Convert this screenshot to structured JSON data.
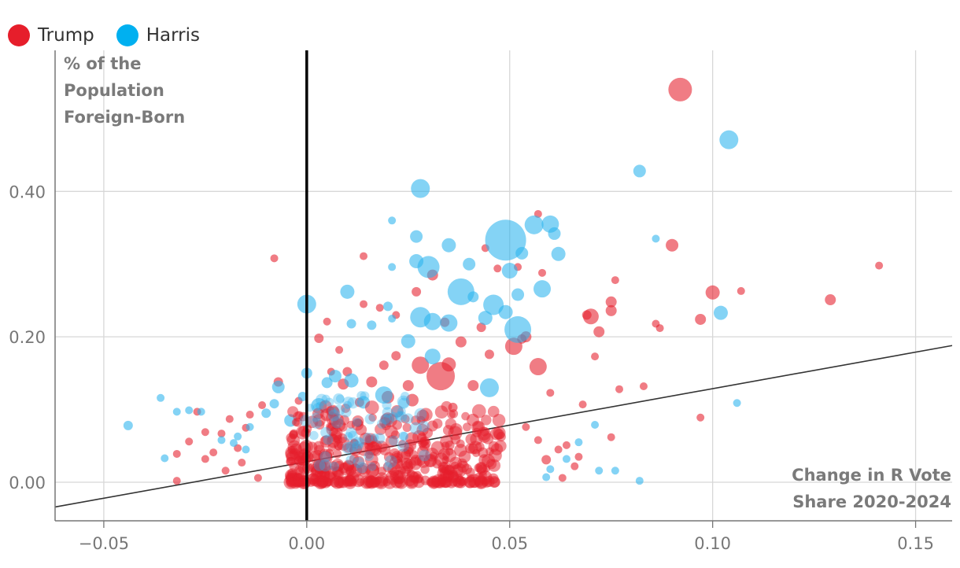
{
  "colors": {
    "trump": "#e61e2b",
    "harris": "#2bb3ee",
    "grid": "#d7d7d7",
    "axis": "#777777",
    "zero_line": "#000000",
    "trend_line": "#333333"
  },
  "legend": [
    {
      "label": "Trump",
      "color": "#e61e2b"
    },
    {
      "label": "Harris",
      "color": "#00b0f0"
    }
  ],
  "chart_data": {
    "type": "scatter",
    "title": "",
    "xlabel": "Change in R Vote Share 2020-2024",
    "ylabel": "% of the Population Foreign-Born",
    "xlabel_lines": [
      "Change in R Vote",
      "Share 2020-2024"
    ],
    "ylabel_lines": [
      "% of the",
      "Population",
      "Foreign-Born"
    ],
    "xlim": [
      -0.062,
      0.159
    ],
    "ylim": [
      -0.053,
      0.594
    ],
    "x_ticks": [
      -0.05,
      0.0,
      0.05,
      0.1,
      0.15
    ],
    "x_tick_labels": [
      "−0.05",
      "0.00",
      "0.05",
      "0.10",
      "0.15"
    ],
    "y_ticks": [
      0.0,
      0.2,
      0.4
    ],
    "y_tick_labels": [
      "0.00",
      "0.20",
      "0.40"
    ],
    "vertical_reference_x": 0.0,
    "trend_line": {
      "x": [
        -0.062,
        0.159
      ],
      "y": [
        -0.034,
        0.188
      ]
    },
    "size_note": "marker area scales with county population",
    "series": [
      {
        "name": "Trump",
        "points": [
          [
            0.092,
            0.54,
            15
          ],
          [
            0.141,
            0.298,
            5
          ],
          [
            0.129,
            0.251,
            7
          ],
          [
            0.107,
            0.263,
            5
          ],
          [
            0.1,
            0.261,
            9
          ],
          [
            0.097,
            0.224,
            7
          ],
          [
            0.09,
            0.326,
            8
          ],
          [
            0.087,
            0.212,
            5
          ],
          [
            0.086,
            0.218,
            5
          ],
          [
            0.083,
            0.132,
            5
          ],
          [
            0.077,
            0.128,
            5
          ],
          [
            0.076,
            0.278,
            5
          ],
          [
            0.075,
            0.248,
            7
          ],
          [
            0.075,
            0.236,
            7
          ],
          [
            0.072,
            0.207,
            7
          ],
          [
            0.071,
            0.173,
            5
          ],
          [
            0.07,
            0.228,
            10
          ],
          [
            0.069,
            0.23,
            6
          ],
          [
            0.097,
            0.089,
            5
          ],
          [
            0.075,
            0.062,
            5
          ],
          [
            0.068,
            0.107,
            5
          ],
          [
            0.057,
            0.159,
            11
          ],
          [
            0.051,
            0.187,
            11
          ],
          [
            0.053,
            0.197,
            6
          ],
          [
            0.054,
            0.2,
            7
          ],
          [
            0.06,
            0.123,
            5
          ],
          [
            0.057,
            0.369,
            5
          ],
          [
            0.058,
            0.288,
            5
          ],
          [
            0.047,
            0.294,
            5
          ],
          [
            0.052,
            0.296,
            5
          ],
          [
            0.044,
            0.322,
            5
          ],
          [
            0.031,
            0.285,
            7
          ],
          [
            0.027,
            0.262,
            6
          ],
          [
            0.022,
            0.23,
            5
          ],
          [
            0.018,
            0.24,
            5
          ],
          [
            0.014,
            0.311,
            5
          ],
          [
            0.014,
            0.245,
            5
          ],
          [
            0.01,
            0.152,
            6
          ],
          [
            0.005,
            0.221,
            5
          ],
          [
            -0.008,
            0.308,
            5
          ],
          [
            0.033,
            0.146,
            18
          ],
          [
            0.034,
            0.22,
            6
          ],
          [
            0.038,
            0.193,
            7
          ],
          [
            0.043,
            0.213,
            6
          ],
          [
            0.045,
            0.176,
            6
          ],
          [
            0.035,
            0.162,
            9
          ],
          [
            0.041,
            0.133,
            7
          ],
          [
            0.036,
            0.103,
            6
          ],
          [
            0.028,
            0.161,
            11
          ],
          [
            0.026,
            0.113,
            8
          ],
          [
            0.025,
            0.133,
            7
          ],
          [
            0.022,
            0.174,
            6
          ],
          [
            0.019,
            0.161,
            6
          ],
          [
            0.02,
            0.117,
            8
          ],
          [
            0.016,
            0.138,
            7
          ],
          [
            0.013,
            0.11,
            6
          ],
          [
            0.009,
            0.135,
            7
          ],
          [
            0.006,
            0.152,
            5
          ],
          [
            0.003,
            0.198,
            6
          ],
          [
            0.008,
            0.182,
            5
          ],
          [
            -0.002,
            0.112,
            5
          ],
          [
            -0.007,
            0.138,
            6
          ],
          [
            -0.011,
            0.106,
            5
          ],
          [
            -0.014,
            0.093,
            5
          ],
          [
            -0.015,
            0.075,
            5
          ],
          [
            -0.017,
            0.047,
            5
          ],
          [
            -0.019,
            0.087,
            5
          ],
          [
            -0.021,
            0.067,
            5
          ],
          [
            -0.023,
            0.041,
            5
          ],
          [
            -0.025,
            0.069,
            5
          ],
          [
            -0.027,
            0.097,
            5
          ],
          [
            -0.029,
            0.056,
            5
          ],
          [
            -0.032,
            0.039,
            5
          ],
          [
            -0.032,
            0.002,
            5
          ],
          [
            -0.025,
            0.032,
            5
          ],
          [
            -0.02,
            0.016,
            5
          ],
          [
            -0.016,
            0.027,
            5
          ],
          [
            -0.012,
            0.006,
            5
          ],
          [
            0.002,
            0.005,
            6
          ],
          [
            0.063,
            0.006,
            5
          ],
          [
            0.062,
            0.045,
            5
          ],
          [
            0.066,
            0.022,
            5
          ],
          [
            0.067,
            0.035,
            5
          ],
          [
            0.059,
            0.031,
            6
          ],
          [
            0.057,
            0.058,
            5
          ],
          [
            0.064,
            0.051,
            5
          ],
          [
            0.054,
            0.076,
            5
          ]
        ]
      },
      {
        "name": "Harris",
        "points": [
          [
            0.104,
            0.471,
            12
          ],
          [
            0.082,
            0.428,
            8
          ],
          [
            0.102,
            0.233,
            9
          ],
          [
            0.106,
            0.109,
            5
          ],
          [
            0.086,
            0.335,
            5
          ],
          [
            0.082,
            0.002,
            5
          ],
          [
            0.076,
            0.016,
            5
          ],
          [
            0.072,
            0.016,
            5
          ],
          [
            0.071,
            0.079,
            5
          ],
          [
            0.067,
            0.055,
            5
          ],
          [
            0.049,
            0.333,
            26
          ],
          [
            0.056,
            0.354,
            12
          ],
          [
            0.06,
            0.355,
            11
          ],
          [
            0.061,
            0.342,
            8
          ],
          [
            0.062,
            0.314,
            9
          ],
          [
            0.058,
            0.266,
            11
          ],
          [
            0.053,
            0.315,
            8
          ],
          [
            0.052,
            0.21,
            17
          ],
          [
            0.05,
            0.291,
            10
          ],
          [
            0.052,
            0.258,
            8
          ],
          [
            0.049,
            0.234,
            9
          ],
          [
            0.046,
            0.244,
            13
          ],
          [
            0.044,
            0.226,
            9
          ],
          [
            0.045,
            0.13,
            12
          ],
          [
            0.041,
            0.255,
            7
          ],
          [
            0.038,
            0.262,
            17
          ],
          [
            0.04,
            0.3,
            8
          ],
          [
            0.035,
            0.326,
            9
          ],
          [
            0.03,
            0.296,
            14
          ],
          [
            0.028,
            0.404,
            12
          ],
          [
            0.027,
            0.338,
            8
          ],
          [
            0.027,
            0.304,
            9
          ],
          [
            0.028,
            0.227,
            13
          ],
          [
            0.031,
            0.221,
            11
          ],
          [
            0.035,
            0.219,
            11
          ],
          [
            0.031,
            0.173,
            10
          ],
          [
            0.025,
            0.194,
            9
          ],
          [
            0.02,
            0.242,
            6
          ],
          [
            0.021,
            0.225,
            5
          ],
          [
            0.016,
            0.216,
            6
          ],
          [
            0.011,
            0.218,
            6
          ],
          [
            0.01,
            0.262,
            9
          ],
          [
            0.0,
            0.245,
            12
          ],
          [
            0.021,
            0.36,
            5
          ],
          [
            0.021,
            0.296,
            5
          ],
          [
            0.007,
            0.146,
            8
          ],
          [
            0.011,
            0.14,
            9
          ],
          [
            0.019,
            0.12,
            11
          ],
          [
            0.014,
            0.11,
            8
          ],
          [
            0.005,
            0.137,
            7
          ],
          [
            0.003,
            0.105,
            10
          ],
          [
            -0.001,
            0.118,
            6
          ],
          [
            0.0,
            0.15,
            7
          ],
          [
            -0.004,
            0.085,
            8
          ],
          [
            -0.007,
            0.131,
            8
          ],
          [
            -0.008,
            0.108,
            6
          ],
          [
            -0.01,
            0.095,
            6
          ],
          [
            -0.014,
            0.076,
            5
          ],
          [
            -0.017,
            0.063,
            5
          ],
          [
            -0.018,
            0.054,
            5
          ],
          [
            -0.021,
            0.058,
            5
          ],
          [
            -0.026,
            0.097,
            5
          ],
          [
            -0.029,
            0.099,
            5
          ],
          [
            -0.032,
            0.097,
            5
          ],
          [
            -0.036,
            0.116,
            5
          ],
          [
            -0.044,
            0.078,
            6
          ],
          [
            -0.035,
            0.033,
            5
          ],
          [
            -0.015,
            0.045,
            5
          ],
          [
            0.064,
            0.032,
            5
          ],
          [
            0.06,
            0.018,
            5
          ],
          [
            0.059,
            0.007,
            5
          ]
        ]
      }
    ]
  }
}
